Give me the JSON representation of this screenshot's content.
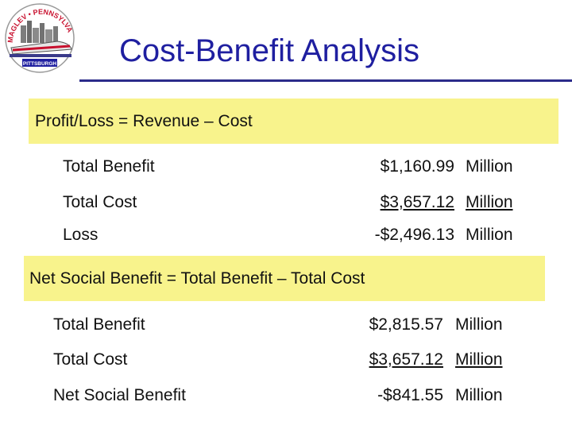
{
  "slide": {
    "title": "Cost-Benefit Analysis",
    "logo": {
      "icon": "maglev-train-logo-icon",
      "text_top": "MAGLEV • PENNSYLVANIA",
      "text_bottom": "PITTSBURGH"
    },
    "section1": {
      "formula": "Profit/Loss  =  Revenue – Cost",
      "rows": [
        {
          "label": "Total Benefit",
          "amount": "$1,160.99",
          "unit": "Million"
        },
        {
          "label": "Total Cost",
          "amount": "$3,657.12",
          "unit": "Million"
        },
        {
          "label": "Loss",
          "amount": "-$2,496.13",
          "unit": "Million"
        }
      ]
    },
    "section2": {
      "formula": "Net Social Benefit = Total Benefit – Total Cost",
      "rows": [
        {
          "label": "Total Benefit",
          "amount": "$2,815.57",
          "unit": "Million"
        },
        {
          "label": "Total Cost",
          "amount": "$3,657.12",
          "unit": "Million"
        },
        {
          "label": "Net Social Benefit",
          "amount": "-$841.55",
          "unit": "Million"
        }
      ]
    },
    "colors": {
      "title": "#1f1fa0",
      "highlight": "#f8f38c",
      "rule": "#2b2b8a"
    }
  }
}
